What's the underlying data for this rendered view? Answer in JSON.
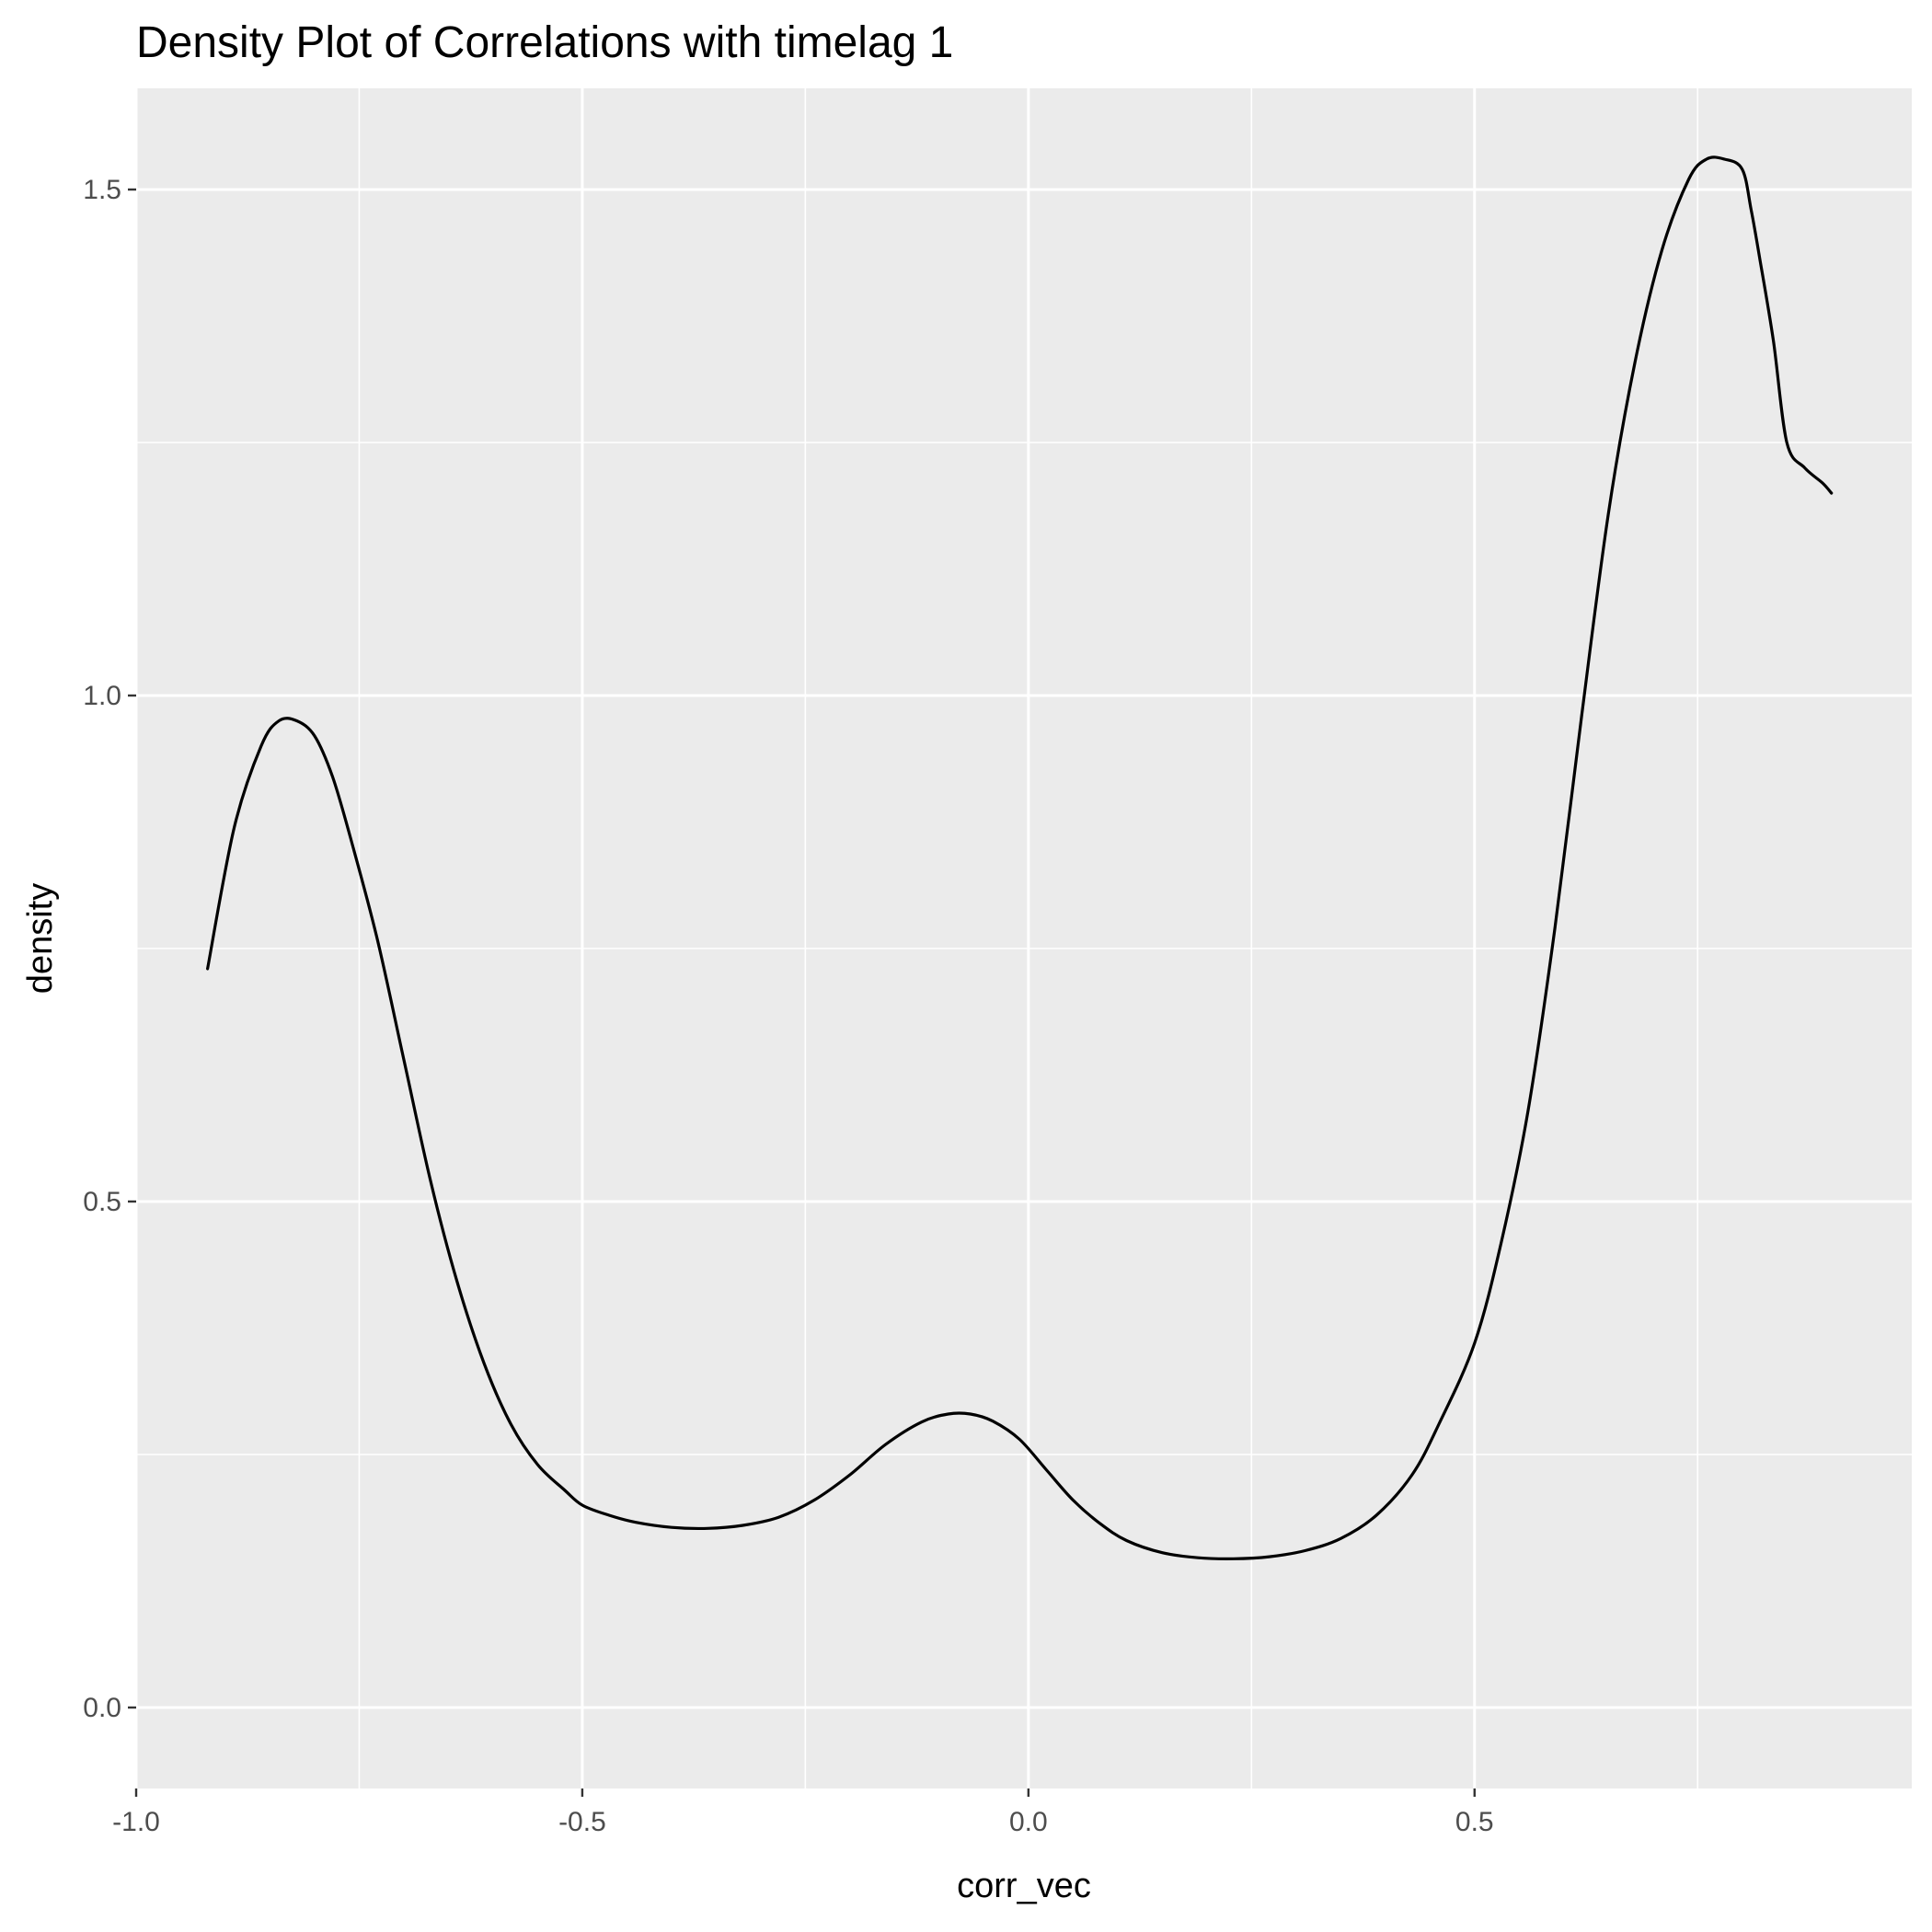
{
  "chart_data": {
    "type": "line",
    "title": "Density Plot of Correlations with timelag 1",
    "xlabel": "corr_vec",
    "ylabel": "density",
    "xlim": [
      -1.0,
      0.99
    ],
    "ylim": [
      -0.08,
      1.6
    ],
    "x_ticks": [
      -1.0,
      -0.5,
      0.0,
      0.5
    ],
    "x_tick_labels": [
      "-1.0",
      "-0.5",
      "0.0",
      "0.5"
    ],
    "y_ticks": [
      0.0,
      0.5,
      1.0,
      1.5
    ],
    "y_tick_labels": [
      "0.0",
      "0.5",
      "1.0",
      "1.5"
    ],
    "grid": true,
    "background": "#ebebeb",
    "gridline_color": "#ffffff",
    "line_color": "#000000",
    "series": [
      {
        "x": [
          -0.92,
          -0.89,
          -0.86,
          -0.84,
          -0.82,
          -0.8,
          -0.78,
          -0.76,
          -0.73,
          -0.7,
          -0.67,
          -0.64,
          -0.61,
          -0.58,
          -0.55,
          -0.52,
          -0.5,
          -0.47,
          -0.44,
          -0.4,
          -0.36,
          -0.32,
          -0.28,
          -0.24,
          -0.2,
          -0.16,
          -0.12,
          -0.09,
          -0.065,
          -0.04,
          -0.01,
          0.02,
          0.05,
          0.08,
          0.11,
          0.15,
          0.19,
          0.23,
          0.27,
          0.31,
          0.35,
          0.39,
          0.43,
          0.46,
          0.5,
          0.53,
          0.56,
          0.59,
          0.62,
          0.65,
          0.68,
          0.71,
          0.74,
          0.76,
          0.78,
          0.8,
          0.81,
          0.82,
          0.835,
          0.85,
          0.87,
          0.89,
          0.9
        ],
        "y": [
          0.73,
          0.87,
          0.95,
          0.975,
          0.975,
          0.96,
          0.92,
          0.86,
          0.76,
          0.64,
          0.52,
          0.42,
          0.34,
          0.28,
          0.24,
          0.215,
          0.2,
          0.19,
          0.183,
          0.178,
          0.177,
          0.18,
          0.188,
          0.205,
          0.23,
          0.26,
          0.282,
          0.29,
          0.29,
          0.283,
          0.265,
          0.235,
          0.205,
          0.182,
          0.165,
          0.153,
          0.148,
          0.147,
          0.149,
          0.155,
          0.167,
          0.19,
          0.23,
          0.28,
          0.36,
          0.46,
          0.59,
          0.77,
          0.98,
          1.18,
          1.33,
          1.44,
          1.51,
          1.53,
          1.53,
          1.52,
          1.48,
          1.43,
          1.35,
          1.25,
          1.225,
          1.21,
          1.2
        ]
      }
    ]
  }
}
